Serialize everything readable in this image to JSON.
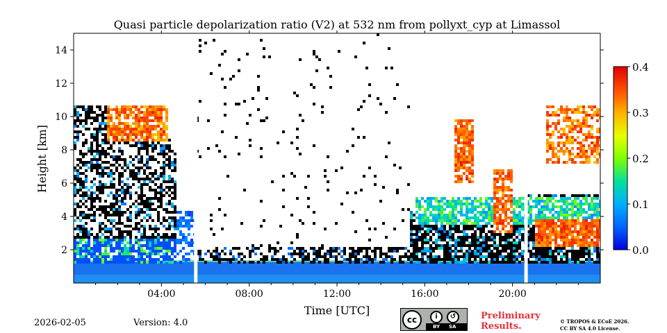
{
  "chart_data": {
    "type": "heatmap",
    "title": "Quasi particle depolarization ratio (V2) at 532 nm from pollyxt_cyp at Limassol",
    "xlabel": "Time [UTC]",
    "ylabel": "Height [km]",
    "xlim": [
      0,
      24
    ],
    "ylim": [
      0,
      15
    ],
    "x_ticks": [
      4,
      8,
      12,
      16,
      20
    ],
    "x_tick_labels": [
      "04:00",
      "08:00",
      "12:00",
      "16:00",
      "20:00"
    ],
    "y_ticks": [
      2,
      4,
      6,
      8,
      10,
      12,
      14
    ],
    "y_tick_labels": [
      "2",
      "4",
      "6",
      "8",
      "10",
      "12",
      "14"
    ],
    "colorbar": {
      "range": [
        0.0,
        0.4
      ],
      "ticks": [
        0.0,
        0.1,
        0.2,
        0.3,
        0.4
      ],
      "tick_labels": [
        "0.0",
        "0.1",
        "0.2",
        "0.3",
        "0.4"
      ],
      "colormap": "jet-like"
    },
    "data_gaps_utc": [
      5.55,
      20.6
    ],
    "features": [
      {
        "name": "boundary layer",
        "time_range": [
          0,
          24
        ],
        "height_km": [
          0,
          1.3
        ],
        "value": 0.05
      },
      {
        "name": "depolarizing dust layer (early)",
        "time_range": [
          1.5,
          4.3
        ],
        "height_km": [
          8.5,
          10.8
        ],
        "value": 0.32
      },
      {
        "name": "dust plumes (late)",
        "time_range": [
          15.5,
          24
        ],
        "height_km": [
          2.5,
          11
        ],
        "value": 0.3
      }
    ]
  },
  "footer": {
    "date": "2026-02-05",
    "version": "Version: 4.0",
    "preliminary_line1": "Preliminary",
    "preliminary_line2": "Results.",
    "copyright_line1": "© TROPOS & ECoE 2026.",
    "copyright_line2": "CC BY SA 4.0 License.",
    "license_badge": {
      "cc": "cc",
      "by": "BY",
      "sa": "SA"
    }
  },
  "colors": {
    "low": "#0050ff",
    "mid": "#80ff00",
    "high": "#ff2000",
    "prelim": "#e8303a"
  }
}
